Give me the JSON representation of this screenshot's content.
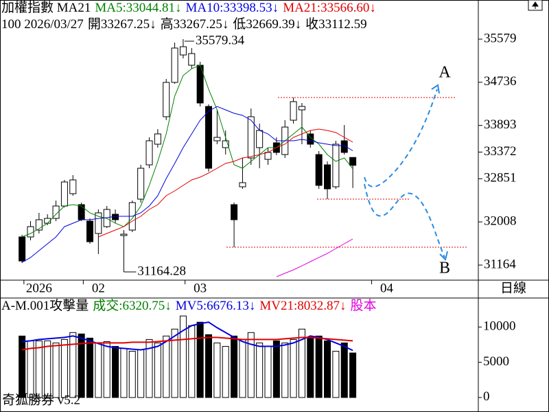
{
  "chart_data": [
    {
      "type": "candlestick",
      "title": "加權指數 MA21",
      "info": [
        "100 2026/03/27",
        "開33267.25↓",
        "高33267.25↓",
        "低32669.39↓",
        "收33112.59"
      ],
      "open": [
        31714,
        31714,
        31848,
        31982,
        32076,
        32318,
        32559,
        32345,
        32023,
        31781,
        31915,
        32157,
        31741,
        31848,
        32452,
        33123,
        33526,
        34063,
        34734,
        35270,
        35069,
        35069,
        34264,
        33593,
        33459,
        32345,
        32694,
        33257,
        33459,
        33230,
        33553,
        33324,
        33995,
        34197,
        33727,
        33324,
        33123,
        32694,
        33593,
        33267.25
      ],
      "high": [
        31754,
        32023,
        32184,
        32157,
        32425,
        32828,
        32922,
        32385,
        32076,
        32251,
        32318,
        32251,
        31848,
        32425,
        33123,
        33660,
        33821,
        34801,
        35512,
        35579.34,
        35405,
        35136,
        34304,
        34197,
        33794,
        32385,
        33257,
        34224,
        33928,
        33459,
        33660,
        33995,
        34438,
        34331,
        33794,
        33392,
        33190,
        33593,
        33901,
        33267.25
      ],
      "low": [
        31204,
        31647,
        31781,
        31942,
        32023,
        32291,
        32519,
        32023,
        31580,
        31379,
        31888,
        31982,
        31164.28,
        31808,
        32385,
        33056,
        33459,
        33995,
        34707,
        35203,
        35002,
        34264,
        32989,
        33526,
        33324,
        31513,
        32653,
        33123,
        33056,
        33123,
        33311,
        33257,
        33928,
        33526,
        33459,
        32653,
        32452,
        32653,
        33324,
        32669.39
      ],
      "close": [
        31244,
        31915,
        32050,
        32076,
        32318,
        32788,
        32828,
        32050,
        31620,
        32184,
        32251,
        32050,
        31768,
        32385,
        33056,
        33593,
        33727,
        34734,
        35405,
        35431,
        35297,
        34331,
        33056,
        33660,
        33593,
        32050,
        32774,
        34063,
        33794,
        33365,
        33365,
        33861,
        34358,
        34264,
        33526,
        32721,
        32653,
        33526,
        33365,
        33112.59
      ],
      "series": [
        {
          "name": "MA5:33044.81↓",
          "color": "#008000",
          "values": [
            31714,
            31781,
            31875,
            31982,
            32157,
            32318,
            32345,
            32318,
            32184,
            32117,
            32076,
            31982,
            31915,
            32076,
            32318,
            32721,
            33190,
            33727,
            34465,
            34868,
            35002,
            35069,
            34599,
            34197,
            33660,
            33123,
            33056,
            33190,
            33324,
            33459,
            33459,
            33593,
            33727,
            33861,
            33660,
            33526,
            33324,
            33190,
            33257,
            33044.81
          ]
        },
        {
          "name": "MA10:33398.53↓",
          "color": "#0000e0",
          "values": [
            31218,
            31311,
            31446,
            31580,
            31714,
            31915,
            31982,
            32050,
            32050,
            32076,
            32090,
            32117,
            32117,
            32117,
            32184,
            32318,
            32519,
            32855,
            33150,
            33459,
            33727,
            33995,
            34170,
            34264,
            34197,
            34130,
            34089,
            33995,
            33794,
            33727,
            33593,
            33593,
            33593,
            33620,
            33593,
            33553,
            33526,
            33499,
            33499,
            33398.53
          ]
        },
        {
          "name": "MA21:33566.60↓",
          "color": "#e00000",
          "values": [
            null,
            null,
            null,
            null,
            null,
            null,
            null,
            null,
            null,
            31714,
            31781,
            31848,
            31915,
            32023,
            32117,
            32251,
            32345,
            32519,
            32613,
            32721,
            32828,
            32882,
            32962,
            33056,
            33150,
            33190,
            33257,
            33284,
            33324,
            33365,
            33459,
            33526,
            33660,
            33727,
            33794,
            33821,
            33794,
            33754,
            33660,
            33566.6
          ]
        }
      ],
      "overlay": {
        "color": "#e000e0",
        "values": [
          null,
          null,
          null,
          null,
          null,
          null,
          null,
          null,
          null,
          null,
          null,
          null,
          null,
          null,
          null,
          null,
          null,
          null,
          null,
          null,
          null,
          null,
          null,
          null,
          null,
          null,
          null,
          null,
          null,
          null,
          30936,
          31003,
          31070,
          31150,
          31231,
          31311,
          31392,
          31486,
          31580,
          31674
        ]
      },
      "reference_lines": [
        34438,
        32452,
        31513
      ],
      "reference_color": "#e00000",
      "annotations": [
        "A",
        "B"
      ],
      "annotation_color": "#ff2020",
      "up_color": "#ffffff",
      "down_color": "#000000",
      "xlim": [
        -2.6,
        53.8
      ],
      "xticks": [
        {
          "value": 2,
          "label": "2026"
        },
        {
          "value": 9,
          "label": "02"
        },
        {
          "value": 21,
          "label": "03"
        },
        {
          "value": 43,
          "label": "04"
        }
      ],
      "ylim": [
        30869,
        36344
      ],
      "yticks": [
        35579,
        34736,
        33893,
        33372,
        32851,
        32008,
        31164
      ],
      "period": "日線"
    },
    {
      "type": "bar",
      "title": "A-M.001攻擊量",
      "series": [
        {
          "name": "成交:6320.75↓",
          "color": "#008000",
          "kind": "bar",
          "values": [
            8725,
            8039,
            8039,
            8039,
            7745,
            8235,
            9216,
            9020,
            8431,
            7745,
            7941,
            7255,
            6961,
            6569,
            6765,
            8235,
            7745,
            8725,
            9706,
            11569,
            10196,
            10686,
            8922,
            7745,
            7255,
            8725,
            8235,
            9216,
            7745,
            7255,
            8039,
            7745,
            8235,
            9706,
            8529,
            8725,
            8039,
            6569,
            7745,
            6320.75
          ]
        },
        {
          "name": "MV5:6676.13↓",
          "color": "#0000e0",
          "kind": "line",
          "values": [
            7941,
            8039,
            8235,
            8333,
            8431,
            8529,
            8725,
            8431,
            8039,
            7647,
            7255,
            7059,
            6961,
            6863,
            6765,
            6961,
            7255,
            7941,
            8725,
            9510,
            10196,
            10490,
            10686,
            9902,
            9216,
            8529,
            7941,
            7549,
            7255,
            7255,
            7255,
            7451,
            7745,
            8235,
            8725,
            8529,
            8235,
            7745,
            7255,
            6676.13
          ]
        },
        {
          "name": "MV21:8032.87↓",
          "color": "#e00000",
          "kind": "line",
          "values": [
            6765,
            6961,
            7059,
            7255,
            7353,
            7451,
            7549,
            7647,
            7745,
            7745,
            7745,
            7745,
            7745,
            7843,
            7843,
            7843,
            7941,
            8039,
            8137,
            8235,
            8333,
            8431,
            8529,
            8529,
            8431,
            8333,
            8235,
            8235,
            8235,
            8235,
            8235,
            8333,
            8431,
            8529,
            8529,
            8431,
            8333,
            8235,
            8137,
            8032.87
          ]
        }
      ],
      "extra_legend": {
        "text": "股本",
        "color": "#e000e0"
      },
      "ylim": [
        -1863,
        14118
      ],
      "yticks": [
        10000,
        5000,
        0
      ]
    }
  ],
  "footer": "奇狐勝券 v5.2"
}
